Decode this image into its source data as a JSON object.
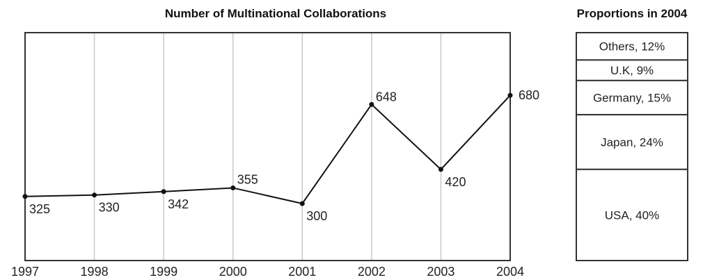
{
  "chart_data": [
    {
      "type": "line",
      "title": "Number of Multinational Collaborations",
      "xlabel": "",
      "ylabel": "",
      "x": [
        "1997",
        "1998",
        "1999",
        "2000",
        "2001",
        "2002",
        "2003",
        "2004"
      ],
      "values": [
        325,
        330,
        342,
        355,
        300,
        648,
        420,
        680
      ],
      "grid": "vertical",
      "ylim": [
        100,
        900
      ],
      "colors": {
        "line": "#111111",
        "grid": "#c8c8c8",
        "frame": "#333333"
      }
    },
    {
      "type": "bar",
      "stacked": true,
      "title": "Proportions in 2004",
      "segments": [
        {
          "label": "Others, 12%",
          "value": 12
        },
        {
          "label": "U.K, 9%",
          "value": 9
        },
        {
          "label": "Germany, 15%",
          "value": 15
        },
        {
          "label": "Japan, 24%",
          "value": 24
        },
        {
          "label": "USA, 40%",
          "value": 40
        }
      ]
    }
  ]
}
